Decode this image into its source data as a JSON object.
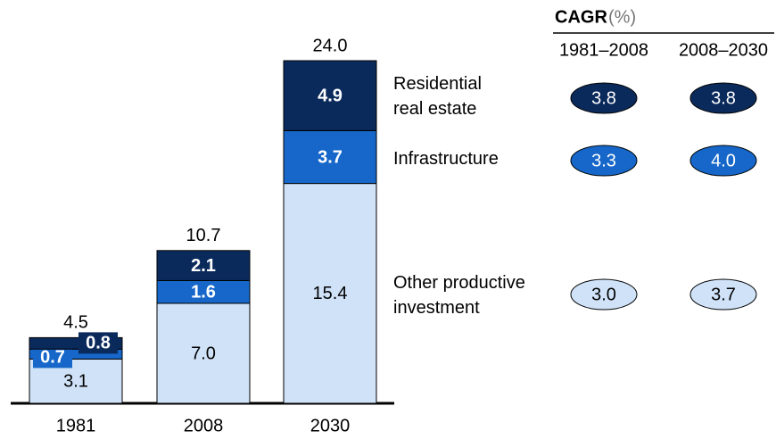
{
  "chart_data": {
    "type": "stacked_bar",
    "categories": [
      "1981",
      "2008",
      "2030"
    ],
    "series": [
      {
        "name": "Other productive investment",
        "color": "#cfe2f8",
        "values": [
          3.1,
          7.0,
          15.4
        ],
        "value_labels": [
          "3.1",
          "7.0",
          "15.4"
        ]
      },
      {
        "name": "Infrastructure",
        "color": "#1667c9",
        "values": [
          0.7,
          1.6,
          3.7
        ],
        "value_labels": [
          "0.7",
          "1.6",
          "3.7"
        ]
      },
      {
        "name": "Residential real estate",
        "color": "#0b2a5c",
        "values": [
          0.8,
          2.1,
          4.9
        ],
        "value_labels": [
          "0.8",
          "2.1",
          "4.9"
        ]
      }
    ],
    "totals": [
      4.5,
      10.7,
      24.0
    ],
    "total_labels": [
      "4.5",
      "10.7",
      "24.0"
    ]
  },
  "cagr": {
    "title": "CAGR",
    "unit": "(%)",
    "columns": [
      "1981–2008",
      "2008–2030"
    ],
    "rows": [
      [
        "3.8",
        "3.8"
      ],
      [
        "3.3",
        "4.0"
      ],
      [
        "3.0",
        "3.7"
      ]
    ]
  }
}
